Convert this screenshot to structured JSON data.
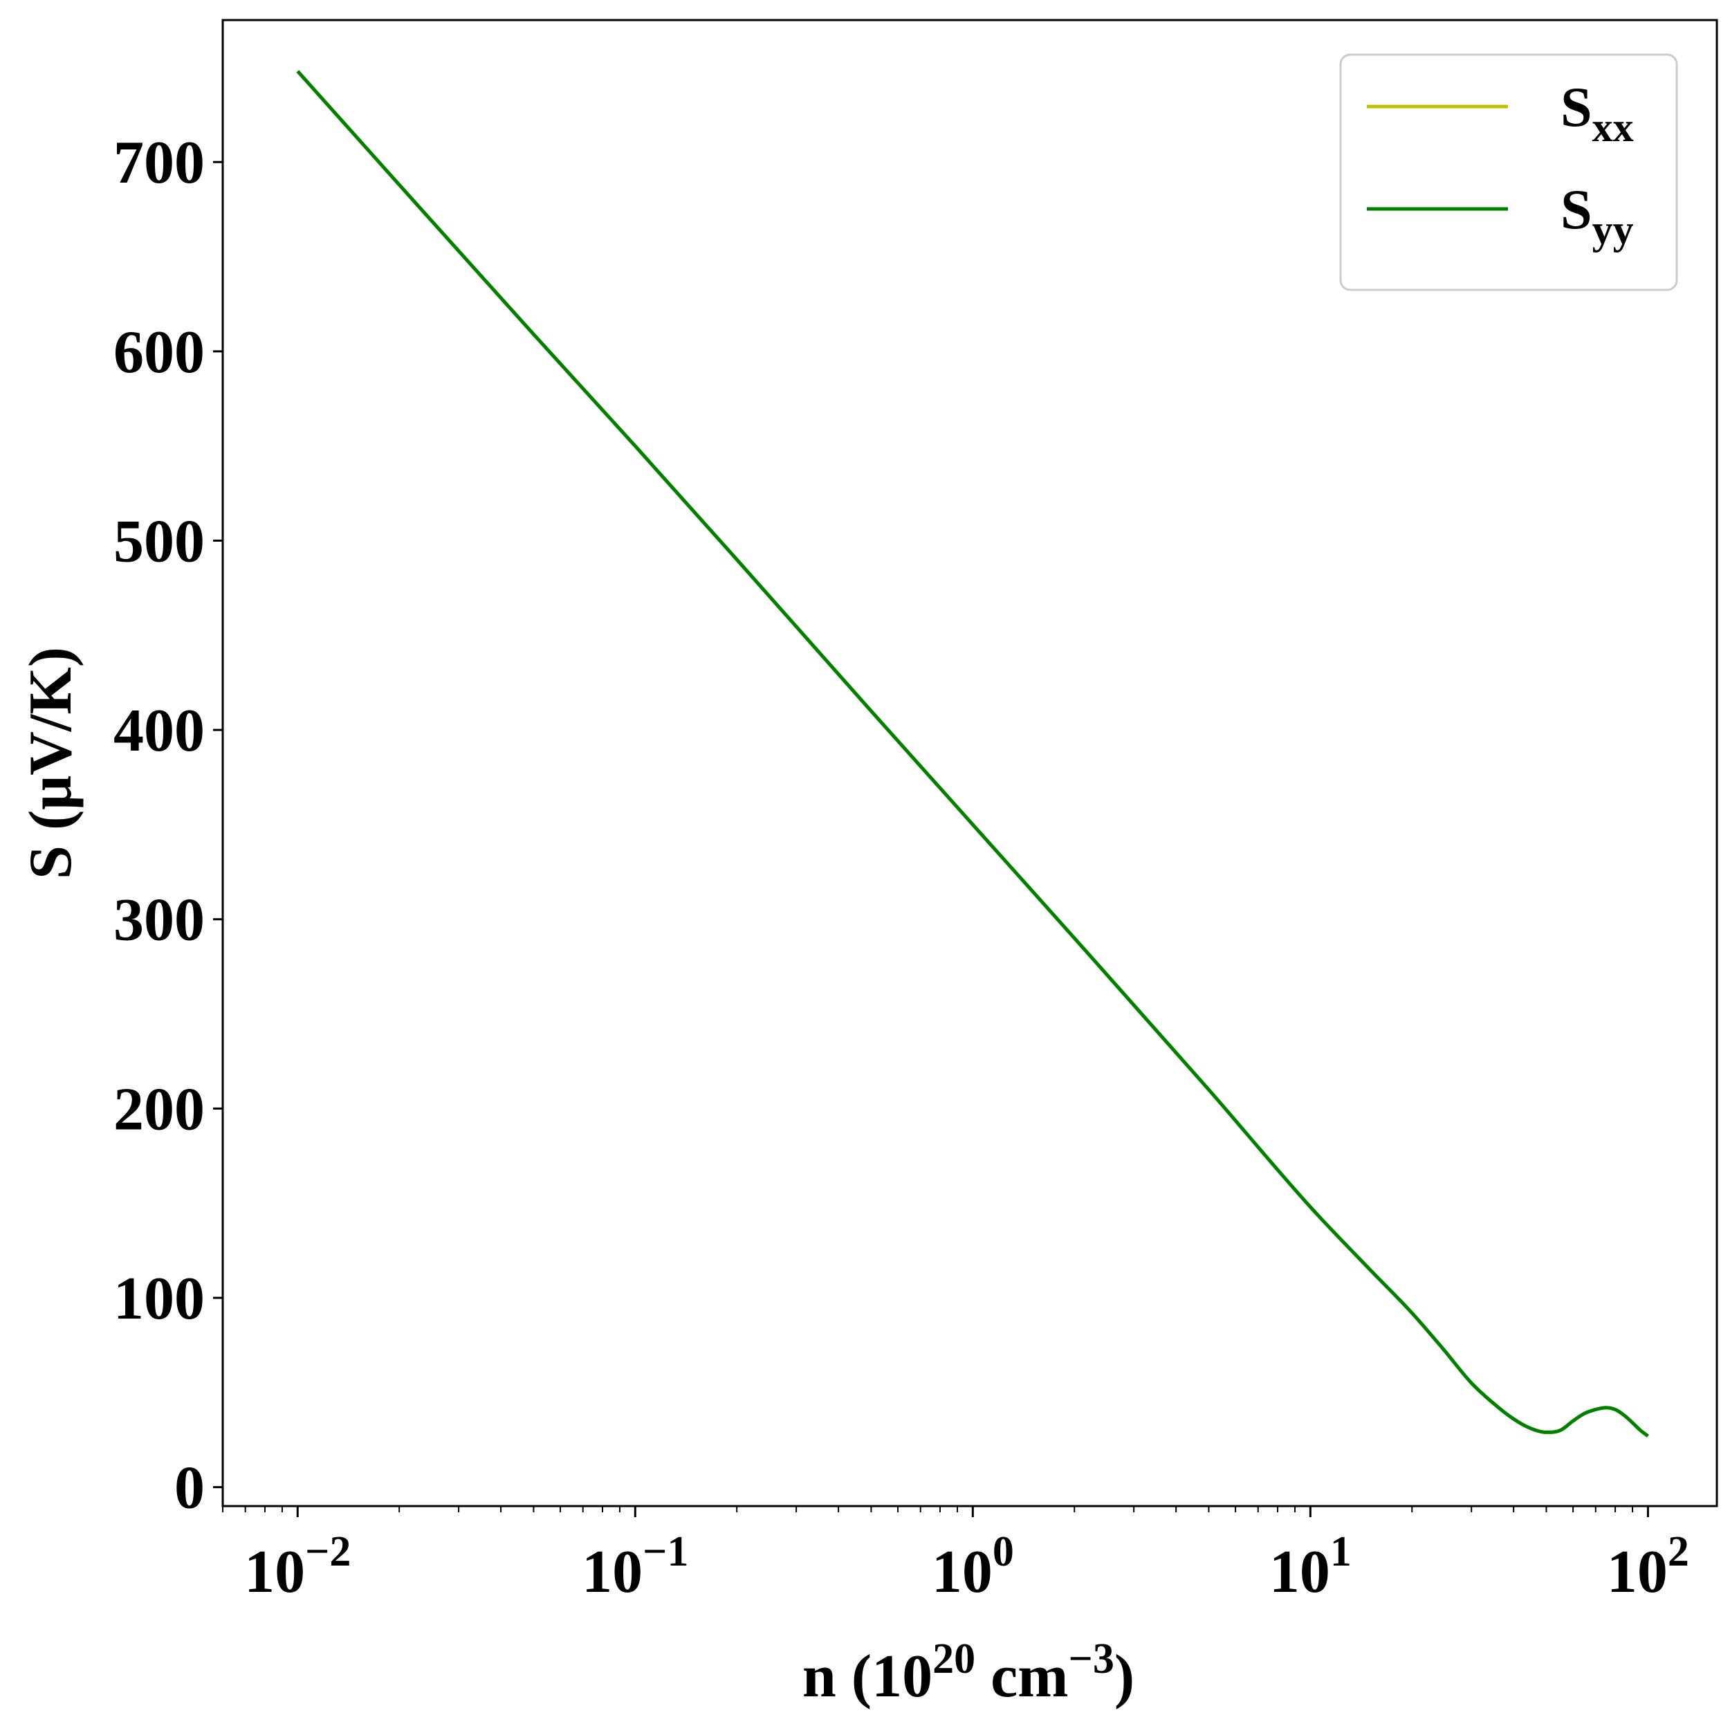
{
  "chart_data": {
    "type": "line",
    "x_scale": "log",
    "xlim": [
      0.006,
      160
    ],
    "ylim": [
      -10,
      775
    ],
    "xlabel": {
      "base": "n (10",
      "sup1": "20",
      "mid": " cm",
      "sup2": "−3",
      "end": ")"
    },
    "ylabel": "S (μV/K)",
    "yticks": [
      {
        "value": 0,
        "label": "0"
      },
      {
        "value": 100,
        "label": "100"
      },
      {
        "value": 200,
        "label": "200"
      },
      {
        "value": 300,
        "label": "300"
      },
      {
        "value": 400,
        "label": "400"
      },
      {
        "value": 500,
        "label": "500"
      },
      {
        "value": 600,
        "label": "600"
      },
      {
        "value": 700,
        "label": "700"
      }
    ],
    "xticks": [
      {
        "value": 0.01,
        "base": "10",
        "exp": "−2"
      },
      {
        "value": 0.1,
        "base": "10",
        "exp": "−1"
      },
      {
        "value": 1,
        "base": "10",
        "exp": "0"
      },
      {
        "value": 10,
        "base": "10",
        "exp": "1"
      },
      {
        "value": 100,
        "base": "10",
        "exp": "2"
      }
    ],
    "legend_position": "top-right",
    "grid": false,
    "series": [
      {
        "name": "S",
        "subscript": "xx",
        "color": "#bfbf00",
        "x": [
          0.01,
          0.02,
          0.05,
          0.1,
          0.2,
          0.5,
          1,
          2,
          5,
          10,
          15,
          20,
          25,
          30,
          35,
          40,
          45,
          50,
          55,
          60,
          65,
          70,
          75,
          80,
          85,
          90,
          95,
          100
        ],
        "y": [
          748,
          688,
          609,
          550,
          490,
          410,
          350,
          290,
          210,
          148,
          115,
          92,
          72,
          55,
          44,
          36,
          31,
          29,
          30,
          35,
          39,
          41,
          42,
          41,
          38,
          34,
          30,
          27
        ]
      },
      {
        "name": "S",
        "subscript": "yy",
        "color": "#008000",
        "x": [
          0.01,
          0.02,
          0.05,
          0.1,
          0.2,
          0.5,
          1,
          2,
          5,
          10,
          15,
          20,
          25,
          30,
          35,
          40,
          45,
          50,
          55,
          60,
          65,
          70,
          75,
          80,
          85,
          90,
          95,
          100
        ],
        "y": [
          748,
          688,
          609,
          550,
          490,
          410,
          350,
          290,
          210,
          148,
          115,
          92,
          72,
          55,
          44,
          36,
          31,
          29,
          30,
          35,
          39,
          41,
          42,
          41,
          38,
          34,
          30,
          27
        ]
      }
    ]
  }
}
